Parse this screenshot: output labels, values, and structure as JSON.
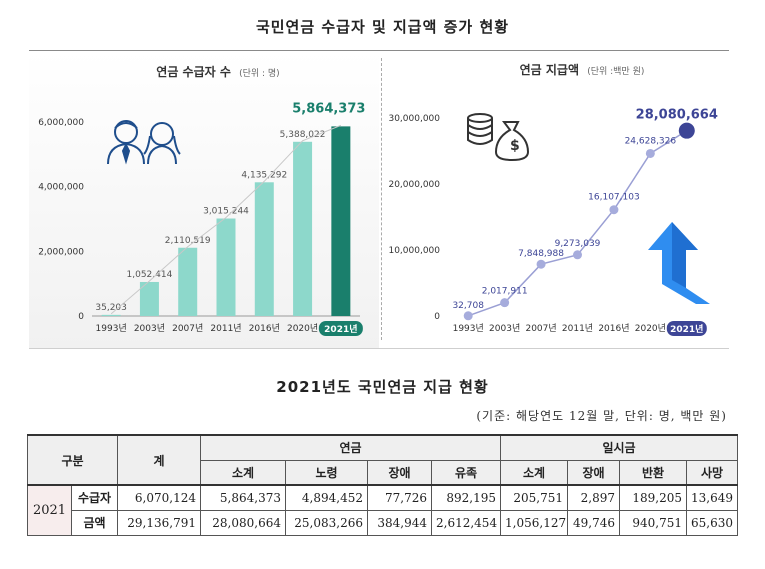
{
  "page_title": "국민연금 수급자 및 지급액 증가 현황",
  "chart_data": [
    {
      "type": "bar",
      "title": "연금 수급자 수",
      "unit_note": "(단위 : 명)",
      "categories": [
        "1993년",
        "2003년",
        "2007년",
        "2011년",
        "2016년",
        "2020년",
        "2021년"
      ],
      "values": [
        35203,
        1052414,
        2110519,
        3015244,
        4135292,
        5388022,
        5864373
      ],
      "value_labels": [
        "35,203",
        "1,052,414",
        "2,110,519",
        "3,015,244",
        "4,135,292",
        "5,388,022",
        "5,864,373"
      ],
      "y_ticks": [
        "0",
        "2,000,000",
        "4,000,000",
        "6,000,000"
      ],
      "y_tick_values": [
        0,
        2000000,
        4000000,
        6000000
      ],
      "ylim": [
        0,
        6000000
      ],
      "colors": {
        "bar": "#8dd8cb",
        "highlight": "#1a7f6c",
        "highlight_label": "#1a7f6c"
      },
      "icon": "people-icon"
    },
    {
      "type": "line",
      "title": "연금 지급액",
      "unit_note": "(단위 :백만 원)",
      "categories": [
        "1993년",
        "2003년",
        "2007년",
        "2011년",
        "2016년",
        "2020년",
        "2021년"
      ],
      "values": [
        32708,
        2017911,
        7848988,
        9273039,
        16107103,
        24628326,
        28080664
      ],
      "value_labels": [
        "32,708",
        "2,017,911",
        "7,848,988",
        "9,273,039",
        "16,107,103",
        "24,628,326",
        "28,080,664"
      ],
      "y_ticks": [
        "0",
        "10,000,000",
        "20,000,000",
        "30,000,000"
      ],
      "y_tick_values": [
        0,
        10000000,
        20000000,
        30000000
      ],
      "ylim": [
        0,
        30000000
      ],
      "colors": {
        "line": "#9a9fd4",
        "point": "#a6acdc",
        "highlight": "#3d4596",
        "highlight_label": "#3d4596"
      },
      "icon": "coins-money-bag-icon"
    }
  ],
  "table_title": "2021년도 국민연금 지급 현황",
  "table_basis": "(기준: 해당연도 12월 말, 단위: 명, 백만 원)",
  "table": {
    "header_category": "구분",
    "header_total": "계",
    "group_pension": "연금",
    "group_lump": "일시금",
    "sub_headers": [
      "소계",
      "노령",
      "장애",
      "유족",
      "소계",
      "장애",
      "반환",
      "사망"
    ],
    "year": "2021",
    "rows": [
      {
        "label": "수급자",
        "total": "6,070,124",
        "values": [
          "5,864,373",
          "4,894,452",
          "77,726",
          "892,195",
          "205,751",
          "2,897",
          "189,205",
          "13,649"
        ]
      },
      {
        "label": "금액",
        "total": "29,136,791",
        "values": [
          "28,080,664",
          "25,083,266",
          "384,944",
          "2,612,454",
          "1,056,127",
          "49,746",
          "940,751",
          "65,630"
        ]
      }
    ]
  }
}
